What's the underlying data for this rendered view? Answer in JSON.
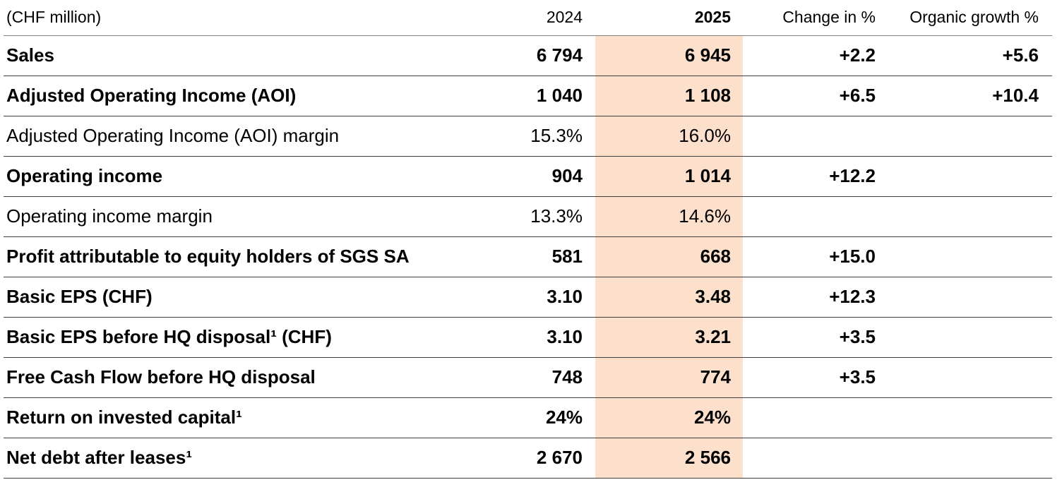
{
  "table": {
    "unit_label": "(CHF million)",
    "highlight_color": "#fce0cc",
    "columns": {
      "y2024": "2024",
      "y2025": "2025",
      "change": "Change in %",
      "organic": "Organic growth %"
    },
    "rows": [
      {
        "label": "Sales",
        "y2024": "6 794",
        "y2025": "6 945",
        "change": "+2.2",
        "organic": "+5.6"
      },
      {
        "label": "Adjusted Operating Income (AOI)",
        "y2024": "1 040",
        "y2025": "1 108",
        "change": "+6.5",
        "organic": "+10.4"
      },
      {
        "label": "Adjusted Operating Income (AOI) margin",
        "y2024": "15.3%",
        "y2025": "16.0%",
        "change": "",
        "organic": ""
      },
      {
        "label": "Operating income",
        "y2024": "904",
        "y2025": "1 014",
        "change": "+12.2",
        "organic": ""
      },
      {
        "label": "Operating income margin",
        "y2024": "13.3%",
        "y2025": "14.6%",
        "change": "",
        "organic": ""
      },
      {
        "label": "Profit attributable to equity holders of SGS SA",
        "y2024": "581",
        "y2025": "668",
        "change": "+15.0",
        "organic": ""
      },
      {
        "label": "Basic EPS (CHF)",
        "y2024": "3.10",
        "y2025": "3.48",
        "change": "+12.3",
        "organic": ""
      },
      {
        "label": "Basic EPS before HQ disposal¹ (CHF)",
        "y2024": "3.10",
        "y2025": "3.21",
        "change": "+3.5",
        "organic": ""
      },
      {
        "label": "Free Cash Flow before HQ disposal",
        "y2024": "748",
        "y2025": "774",
        "change": "+3.5",
        "organic": ""
      },
      {
        "label": "Return on invested capital¹",
        "y2024": "24%",
        "y2025": "24%",
        "change": "",
        "organic": ""
      },
      {
        "label": "Net debt after leases¹",
        "y2024": "2 670",
        "y2025": "2 566",
        "change": "",
        "organic": ""
      }
    ]
  }
}
